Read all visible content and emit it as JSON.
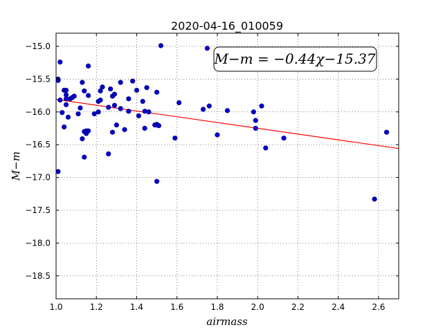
{
  "chart_data": {
    "type": "scatter",
    "title": "2020-04-16_010059",
    "xlabel": "airmass",
    "ylabel": "M−m",
    "xlim": [
      1.0,
      2.7
    ],
    "ylim": [
      -18.85,
      -14.8
    ],
    "xticks": [
      1.0,
      1.2,
      1.4,
      1.6,
      1.8,
      2.0,
      2.2,
      2.4,
      2.6
    ],
    "xtick_labels": [
      "1.0",
      "1.2",
      "1.4",
      "1.6",
      "1.8",
      "2.0",
      "2.2",
      "2.4",
      "2.6"
    ],
    "yticks": [
      -15.0,
      -15.5,
      -16.0,
      -16.5,
      -17.0,
      -17.5,
      -18.0,
      -18.5
    ],
    "ytick_labels": [
      "−15.0",
      "−15.5",
      "−16.0",
      "−16.5",
      "−17.0",
      "−17.5",
      "−18.0",
      "−18.5"
    ],
    "grid": true,
    "annotation": "M−m = −0.44χ−15.37",
    "fit": {
      "slope": -0.44,
      "intercept": -15.37,
      "color": "#ff0000"
    },
    "marker_color": "#0000cc",
    "x": [
      1.01,
      1.01,
      1.02,
      1.02,
      1.03,
      1.04,
      1.04,
      1.05,
      1.05,
      1.05,
      1.05,
      1.06,
      1.07,
      1.08,
      1.09,
      1.11,
      1.12,
      1.13,
      1.13,
      1.14,
      1.14,
      1.14,
      1.15,
      1.15,
      1.16,
      1.16,
      1.16,
      1.19,
      1.21,
      1.21,
      1.22,
      1.22,
      1.23,
      1.26,
      1.26,
      1.27,
      1.28,
      1.28,
      1.29,
      1.29,
      1.3,
      1.32,
      1.32,
      1.34,
      1.36,
      1.36,
      1.38,
      1.4,
      1.41,
      1.43,
      1.44,
      1.44,
      1.45,
      1.46,
      1.49,
      1.5,
      1.5,
      1.5,
      1.5,
      1.51,
      1.52,
      1.59,
      1.61,
      1.73,
      1.75,
      1.76,
      1.8,
      1.85,
      1.98,
      1.99,
      1.99,
      2.02,
      2.04,
      2.13,
      2.58,
      2.64,
      1.01,
      1.01
    ],
    "y": [
      -15.52,
      -16.91,
      -15.24,
      -15.82,
      -16.01,
      -15.67,
      -16.23,
      -15.74,
      -15.8,
      -15.89,
      -15.67,
      -16.08,
      -15.8,
      -15.78,
      -15.76,
      -16.03,
      -15.94,
      -16.41,
      -15.55,
      -15.68,
      -16.69,
      -16.3,
      -16.33,
      -16.29,
      -15.3,
      -15.75,
      -16.29,
      -16.03,
      -15.84,
      -16.0,
      -15.68,
      -15.82,
      -15.62,
      -15.93,
      -16.64,
      -15.65,
      -15.76,
      -16.31,
      -15.73,
      -15.9,
      -16.2,
      -15.55,
      -15.95,
      -16.27,
      -15.8,
      -15.99,
      -15.53,
      -15.67,
      -16.06,
      -15.84,
      -16.25,
      -15.99,
      -15.63,
      -16.0,
      -16.2,
      -15.7,
      -16.19,
      -16.2,
      -17.06,
      -16.21,
      -14.99,
      -16.4,
      -15.86,
      -15.96,
      -15.03,
      -15.91,
      -16.35,
      -15.98,
      -16.0,
      -16.25,
      -16.13,
      -15.91,
      -16.55,
      -16.4,
      -17.33,
      -16.31,
      -15.5,
      -15.52
    ]
  }
}
